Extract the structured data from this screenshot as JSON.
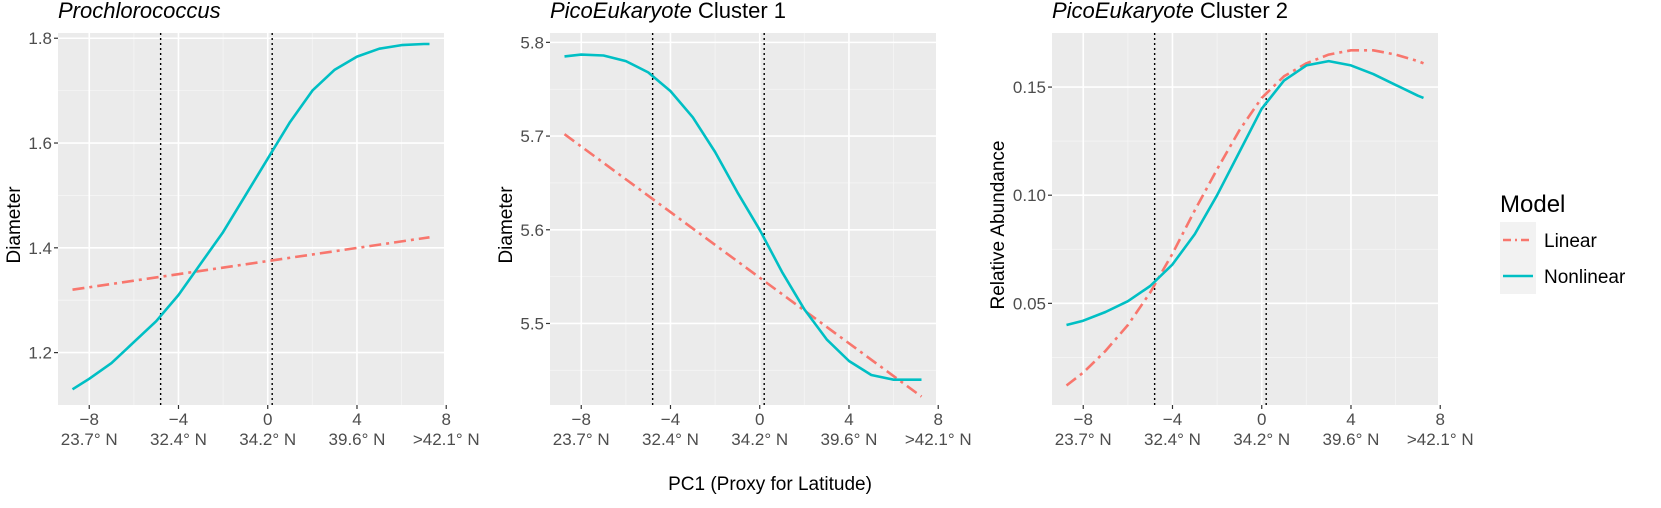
{
  "chart_data": {
    "type": "line",
    "shared_xlabel": "PC1 (Proxy for Latitude)",
    "x_ticks": [
      -8,
      -4,
      0,
      4,
      8
    ],
    "x_tick_labels": [
      "−8",
      "−4",
      "0",
      "4",
      "8"
    ],
    "latitude_labels": [
      "23.7° N",
      "32.4° N",
      "34.2° N",
      "39.6° N",
      ">42.1° N"
    ],
    "vlines": [
      -4.8,
      0.2
    ],
    "legend": {
      "title": "Model",
      "entries": [
        {
          "name": "Linear",
          "color": "#F8766D",
          "dash": "dotdash"
        },
        {
          "name": "Nonlinear",
          "color": "#00BFC4",
          "dash": "solid"
        }
      ]
    },
    "panels": [
      {
        "title_italic": "Prochlorococcus",
        "title_rest": "",
        "ylabel": "Diameter",
        "xlim": [
          -9.4,
          7.9
        ],
        "ylim": [
          1.1,
          1.81
        ],
        "y_ticks": [
          1.2,
          1.4,
          1.6,
          1.8
        ],
        "y_tick_labels": [
          "1.2",
          "1.4",
          "1.6",
          "1.8"
        ],
        "series": [
          {
            "name": "Linear",
            "x": [
              -8.75,
              7.25
            ],
            "y": [
              1.32,
              1.42
            ]
          },
          {
            "name": "Nonlinear",
            "x": [
              -8.75,
              -8,
              -7,
              -6,
              -5,
              -4,
              -3,
              -2,
              -1,
              0,
              1,
              2,
              3,
              4,
              5,
              6,
              7,
              7.25
            ],
            "y": [
              1.13,
              1.15,
              1.18,
              1.22,
              1.26,
              1.31,
              1.37,
              1.43,
              1.5,
              1.57,
              1.64,
              1.7,
              1.74,
              1.765,
              1.78,
              1.787,
              1.789,
              1.789
            ]
          }
        ]
      },
      {
        "title_italic": "PicoEukaryote",
        "title_rest": " Cluster 1",
        "ylabel": "Diameter",
        "xlim": [
          -9.4,
          7.9
        ],
        "ylim": [
          5.413,
          5.81
        ],
        "y_ticks": [
          5.5,
          5.6,
          5.7,
          5.8
        ],
        "y_tick_labels": [
          "5.5",
          "5.6",
          "5.7",
          "5.8"
        ],
        "series": [
          {
            "name": "Linear",
            "x": [
              -8.75,
              7.25
            ],
            "y": [
              5.702,
              5.422
            ]
          },
          {
            "name": "Nonlinear",
            "x": [
              -8.75,
              -8,
              -7,
              -6,
              -5,
              -4,
              -3,
              -2,
              -1,
              0,
              1,
              2,
              3,
              4,
              5,
              6,
              7,
              7.25
            ],
            "y": [
              5.785,
              5.787,
              5.786,
              5.78,
              5.768,
              5.748,
              5.72,
              5.683,
              5.64,
              5.6,
              5.555,
              5.515,
              5.483,
              5.46,
              5.445,
              5.44,
              5.44,
              5.44
            ]
          }
        ]
      },
      {
        "title_italic": "PicoEukaryote",
        "title_rest": " Cluster 2",
        "ylabel": "Relative Abundance",
        "xlim": [
          -9.4,
          7.9
        ],
        "ylim": [
          0.003,
          0.175
        ],
        "y_ticks": [
          0.05,
          0.1,
          0.15
        ],
        "y_tick_labels": [
          "0.05",
          "0.10",
          "0.15"
        ],
        "series": [
          {
            "name": "Linear",
            "x": [
              -8.75,
              -8,
              -7,
              -6,
              -5,
              -4,
              -3,
              -2,
              -1,
              0,
              1,
              2,
              3,
              4,
              5,
              6,
              7,
              7.25
            ],
            "y": [
              0.012,
              0.018,
              0.028,
              0.04,
              0.055,
              0.073,
              0.093,
              0.112,
              0.13,
              0.145,
              0.155,
              0.161,
              0.165,
              0.167,
              0.167,
              0.165,
              0.162,
              0.161
            ]
          },
          {
            "name": "Nonlinear",
            "x": [
              -8.75,
              -8,
              -7,
              -6,
              -5,
              -4,
              -3,
              -2,
              -1,
              0,
              1,
              2,
              3,
              4,
              5,
              6,
              7,
              7.25
            ],
            "y": [
              0.04,
              0.042,
              0.046,
              0.051,
              0.058,
              0.068,
              0.082,
              0.1,
              0.12,
              0.14,
              0.153,
              0.16,
              0.162,
              0.16,
              0.156,
              0.151,
              0.146,
              0.145
            ]
          }
        ]
      }
    ]
  }
}
